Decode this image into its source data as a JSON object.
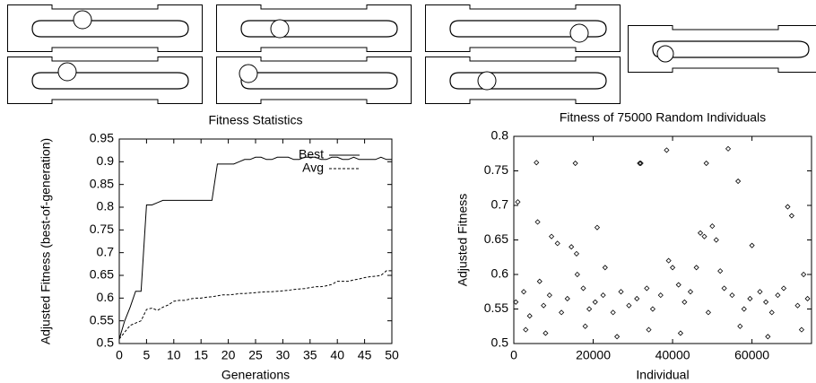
{
  "chart_data": [
    {
      "type": "line",
      "title": "Fitness Statistics",
      "xlabel": "Generations",
      "ylabel": "Adjusted Fitness (best-of-generation)",
      "x": [
        0,
        1,
        2,
        3,
        4,
        5,
        6,
        7,
        8,
        9,
        10,
        11,
        12,
        13,
        14,
        15,
        16,
        17,
        18,
        19,
        20,
        21,
        22,
        23,
        24,
        25,
        26,
        27,
        28,
        29,
        30,
        31,
        32,
        33,
        34,
        35,
        36,
        37,
        38,
        39,
        40,
        41,
        42,
        43,
        44,
        45,
        46,
        47,
        48,
        49,
        50
      ],
      "series": [
        {
          "name": "Best",
          "color": "#000000",
          "dash": false,
          "values": [
            0.51,
            0.55,
            0.58,
            0.615,
            0.615,
            0.805,
            0.805,
            0.81,
            0.815,
            0.815,
            0.815,
            0.815,
            0.815,
            0.815,
            0.815,
            0.815,
            0.815,
            0.815,
            0.895,
            0.895,
            0.895,
            0.895,
            0.9,
            0.905,
            0.905,
            0.91,
            0.91,
            0.905,
            0.905,
            0.91,
            0.91,
            0.91,
            0.905,
            0.905,
            0.91,
            0.91,
            0.91,
            0.905,
            0.905,
            0.91,
            0.91,
            0.905,
            0.905,
            0.91,
            0.905,
            0.905,
            0.905,
            0.905,
            0.91,
            0.905,
            0.905
          ]
        },
        {
          "name": "Avg",
          "color": "#000000",
          "dash": true,
          "values": [
            0.51,
            0.525,
            0.54,
            0.545,
            0.55,
            0.575,
            0.578,
            0.573,
            0.58,
            0.585,
            0.593,
            0.595,
            0.595,
            0.598,
            0.6,
            0.6,
            0.602,
            0.603,
            0.605,
            0.607,
            0.607,
            0.608,
            0.61,
            0.61,
            0.611,
            0.612,
            0.613,
            0.614,
            0.614,
            0.615,
            0.616,
            0.617,
            0.619,
            0.62,
            0.621,
            0.623,
            0.625,
            0.625,
            0.627,
            0.63,
            0.637,
            0.637,
            0.637,
            0.64,
            0.642,
            0.645,
            0.647,
            0.648,
            0.65,
            0.66,
            0.66
          ]
        }
      ],
      "xlim": [
        0,
        50
      ],
      "xticks": [
        0,
        5,
        10,
        15,
        20,
        25,
        30,
        35,
        40,
        45,
        50
      ],
      "ylim": [
        0.5,
        0.95
      ],
      "yticks": [
        0.5,
        0.55,
        0.6,
        0.65,
        0.7,
        0.75,
        0.8,
        0.85,
        0.9,
        0.95
      ],
      "legend": "upper right"
    },
    {
      "type": "scatter",
      "title": "Fitness of 75000 Random Individuals",
      "xlabel": "Individual",
      "ylabel": "Adjusted Fitness",
      "color": "#000000",
      "x": [
        1000,
        5700,
        6000,
        9500,
        11000,
        14500,
        15500,
        15800,
        16000,
        21000,
        23000,
        31700,
        32000,
        38500,
        39000,
        40000,
        46000,
        47000,
        48000,
        48500,
        50000,
        51000,
        52000,
        54000,
        56500,
        60000,
        69000,
        70000,
        73000,
        6500,
        500,
        2500,
        4000,
        7500,
        9000,
        12000,
        13500,
        17500,
        19000,
        20500,
        22500,
        25000,
        27000,
        29000,
        31000,
        33500,
        35000,
        37000,
        41500,
        43000,
        44500,
        49000,
        53000,
        55000,
        58000,
        59500,
        62000,
        63500,
        65000,
        66500,
        68000,
        71500,
        74000,
        3000,
        8000,
        18000,
        26000,
        34000,
        42000,
        57000,
        64000,
        72500
      ],
      "values": [
        0.705,
        0.762,
        0.676,
        0.655,
        0.645,
        0.64,
        0.761,
        0.63,
        0.6,
        0.668,
        0.61,
        0.761,
        0.761,
        0.78,
        0.62,
        0.61,
        0.61,
        0.66,
        0.655,
        0.761,
        0.67,
        0.65,
        0.605,
        0.782,
        0.735,
        0.642,
        0.698,
        0.685,
        0.6,
        0.59,
        0.56,
        0.575,
        0.54,
        0.555,
        0.57,
        0.545,
        0.565,
        0.58,
        0.55,
        0.56,
        0.57,
        0.545,
        0.575,
        0.555,
        0.565,
        0.58,
        0.55,
        0.57,
        0.585,
        0.56,
        0.575,
        0.545,
        0.58,
        0.57,
        0.55,
        0.565,
        0.575,
        0.56,
        0.545,
        0.57,
        0.58,
        0.555,
        0.565,
        0.52,
        0.515,
        0.525,
        0.51,
        0.52,
        0.515,
        0.525,
        0.51,
        0.52
      ],
      "xlim": [
        0,
        75000
      ],
      "xticks": [
        0,
        20000,
        40000,
        60000
      ],
      "ylim": [
        0.5,
        0.8
      ],
      "yticks": [
        0.5,
        0.55,
        0.6,
        0.65,
        0.7,
        0.75,
        0.8
      ]
    }
  ]
}
